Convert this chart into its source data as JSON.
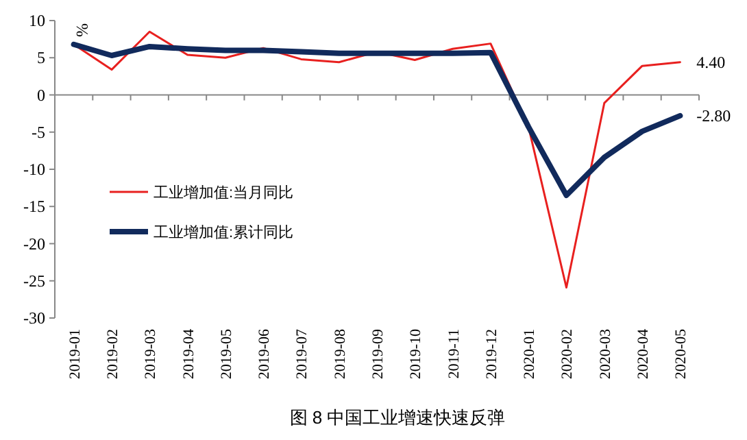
{
  "chart_data": {
    "type": "line",
    "title": "图 8 中国工业增速快速反弹",
    "ylabel": "%",
    "categories": [
      "2019-01",
      "2019-02",
      "2019-03",
      "2019-04",
      "2019-05",
      "2019-06",
      "2019-07",
      "2019-08",
      "2019-09",
      "2019-10",
      "2019-11",
      "2019-12",
      "2020-01",
      "2020-02",
      "2020-03",
      "2020-04",
      "2020-05"
    ],
    "series": [
      {
        "name": "工业增加值:当月同比",
        "color": "#e8201f",
        "values": [
          6.8,
          3.4,
          8.5,
          5.4,
          5.0,
          6.3,
          4.8,
          4.4,
          5.8,
          4.7,
          6.2,
          6.9,
          -4.3,
          -25.9,
          -1.1,
          3.9,
          4.4
        ],
        "value_labels": [
          null,
          null,
          null,
          null,
          null,
          null,
          null,
          null,
          null,
          null,
          null,
          null,
          null,
          null,
          null,
          null,
          "4.40"
        ]
      },
      {
        "name": "工业增加值:累计同比",
        "color": "#112a5c",
        "values": [
          6.8,
          5.3,
          6.5,
          6.2,
          6.0,
          6.0,
          5.8,
          5.6,
          5.6,
          5.6,
          5.6,
          5.7,
          -4.3,
          -13.5,
          -8.4,
          -4.9,
          -2.8
        ],
        "value_labels": [
          null,
          null,
          null,
          null,
          null,
          null,
          null,
          null,
          null,
          null,
          null,
          null,
          null,
          null,
          null,
          null,
          "-2.80"
        ]
      }
    ],
    "ylim": [
      -30,
      10
    ],
    "yticks": [
      -30,
      -25,
      -20,
      -15,
      -10,
      -5,
      0,
      5,
      10
    ],
    "legend": "left",
    "marker": "none",
    "line_style": "solid"
  }
}
